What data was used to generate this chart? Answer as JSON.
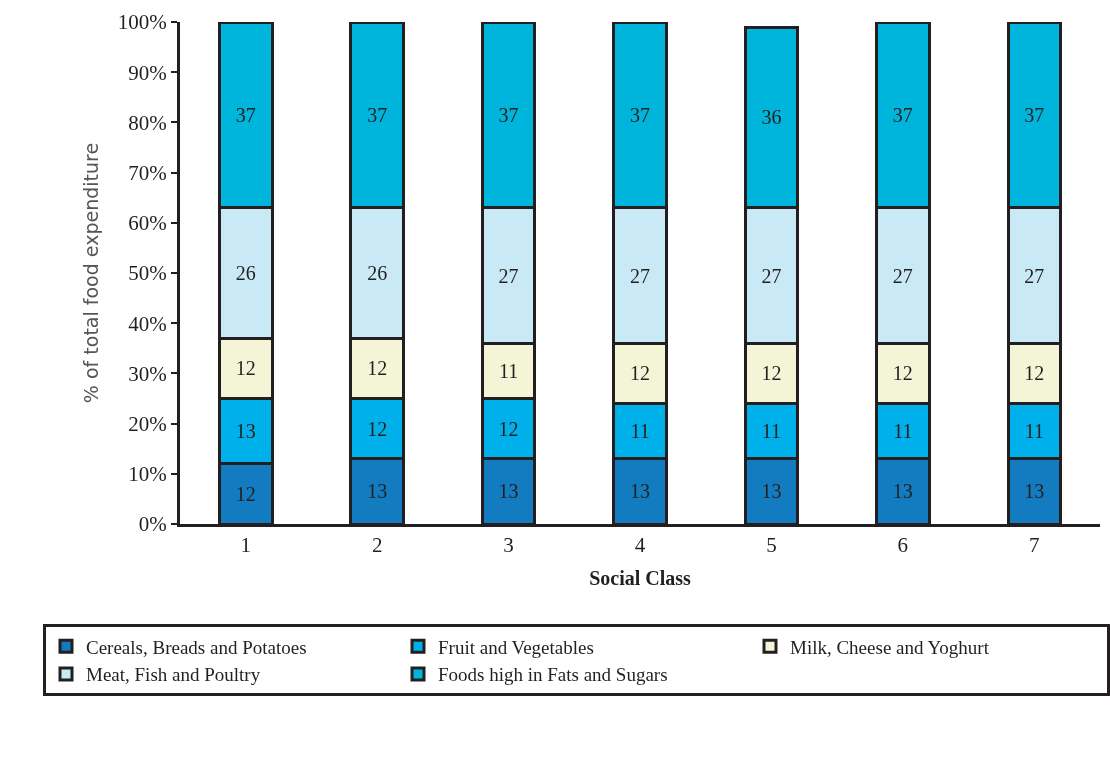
{
  "chart_data": {
    "type": "bar",
    "stacked": true,
    "xlabel": "Social Class",
    "ylabel": "% of total food expenditure",
    "categories": [
      "1",
      "2",
      "3",
      "4",
      "5",
      "6",
      "7"
    ],
    "series": [
      {
        "name": "Cereals, Breads and Potatoes",
        "color": "#137bbf",
        "values": [
          12,
          13,
          13,
          13,
          13,
          13,
          13
        ]
      },
      {
        "name": "Fruit and Vegetables",
        "color": "#00b0ea",
        "values": [
          13,
          12,
          12,
          11,
          11,
          11,
          11
        ]
      },
      {
        "name": "Milk, Cheese and Yoghurt",
        "color": "#f4f4d6",
        "values": [
          12,
          12,
          11,
          12,
          12,
          12,
          12
        ]
      },
      {
        "name": "Meat, Fish and Poultry",
        "color": "#c9e9f6",
        "values": [
          26,
          26,
          27,
          27,
          27,
          27,
          27
        ]
      },
      {
        "name": "Foods high in Fats and Sugars",
        "color": "#00b5dc",
        "values": [
          37,
          37,
          37,
          37,
          36,
          37,
          37
        ]
      }
    ],
    "ylim": [
      0,
      100
    ],
    "yticks": [
      {
        "value": 0,
        "label": "0%"
      },
      {
        "value": 10,
        "label": "10%"
      },
      {
        "value": 20,
        "label": "20%"
      },
      {
        "value": 30,
        "label": "30%"
      },
      {
        "value": 40,
        "label": "40%"
      },
      {
        "value": 50,
        "label": "50%"
      },
      {
        "value": 60,
        "label": "60%"
      },
      {
        "value": 70,
        "label": "70%"
      },
      {
        "value": 80,
        "label": "80%"
      },
      {
        "value": 90,
        "label": "90%"
      },
      {
        "value": 100,
        "label": "100%"
      }
    ],
    "data_labels": true,
    "legend": "bottom"
  }
}
